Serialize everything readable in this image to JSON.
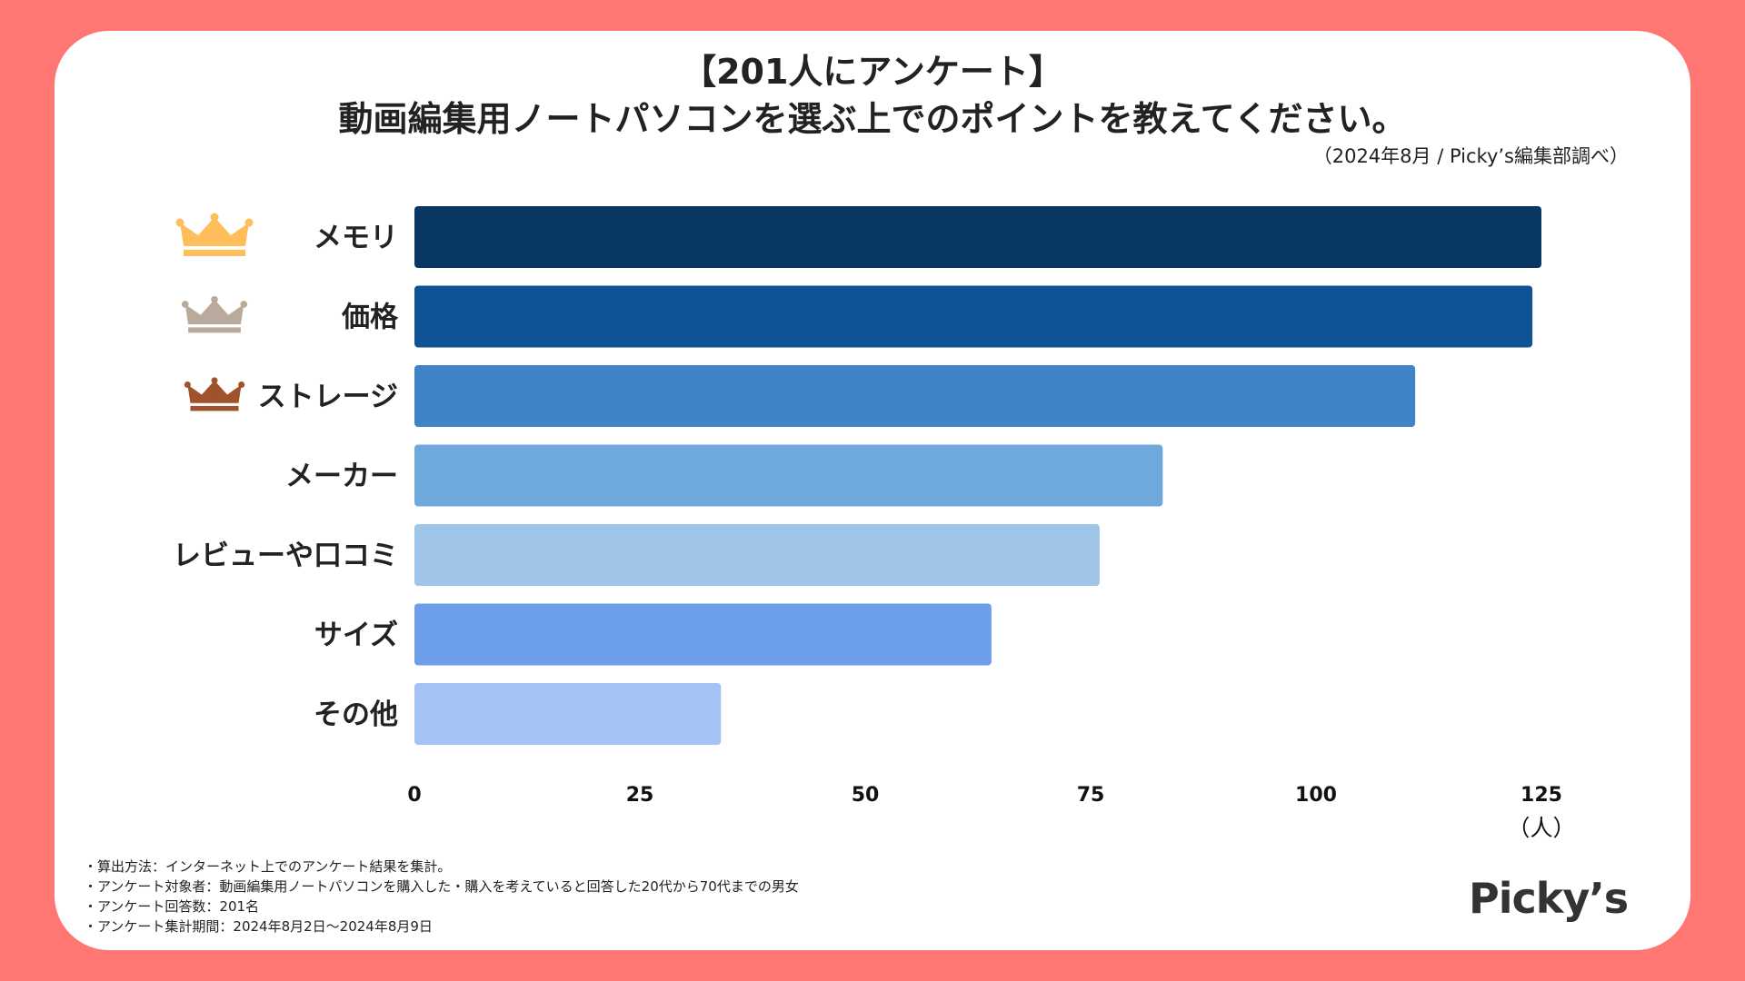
{
  "title_line1": "【201人にアンケート】",
  "title_line2": "動画編集用ノートパソコンを選ぶ上でのポイントを教えてください。",
  "source": "（2024年8月 / Picky’s編集部調べ）",
  "notes": [
    "・算出方法：インターネット上でのアンケート結果を集計。",
    "・アンケート対象者：動画編集用ノートパソコンを購入した・購入を考えていると回答した20代から70代までの男女",
    "・アンケート回答数：201名",
    "・アンケート集計期間：2024年8月2日〜2024年8月9日"
  ],
  "logo": "Picky’s",
  "chart_data": {
    "type": "bar",
    "orientation": "horizontal",
    "categories": [
      "メモリ",
      "価格",
      "ストレージ",
      "メーカー",
      "レビューや口コミ",
      "サイズ",
      "その他"
    ],
    "values": [
      125,
      124,
      111,
      83,
      76,
      64,
      34
    ],
    "bar_colors": [
      "#083764",
      "#0e5394",
      "#3f84c7",
      "#6fa8dc",
      "#9fc5e8",
      "#6d9eeb",
      "#a4c2f4"
    ],
    "ranks": [
      "gold",
      "silver",
      "bronze",
      null,
      null,
      null,
      null
    ],
    "rank_colors": {
      "gold": "#ffbe5c",
      "silver": "#b9aa9c",
      "bronze": "#a0522d"
    },
    "xlim": [
      0,
      125
    ],
    "xticks": [
      0,
      25,
      50,
      75,
      100,
      125
    ],
    "xlabel": "（人）",
    "title": "動画編集用ノートパソコンを選ぶ上でのポイントを教えてください。"
  }
}
